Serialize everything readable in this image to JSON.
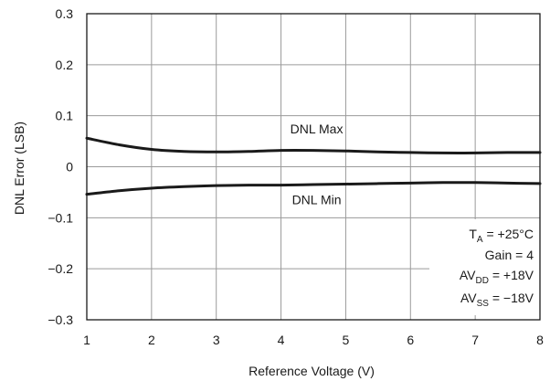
{
  "chart_data": {
    "type": "line",
    "title": "",
    "xlabel": "Reference Voltage (V)",
    "ylabel": "DNL Error (LSB)",
    "xlim": [
      1,
      8
    ],
    "ylim": [
      -0.3,
      0.3
    ],
    "x_ticks": [
      1,
      2,
      3,
      4,
      5,
      6,
      7,
      8
    ],
    "x_tick_labels": [
      "1",
      "2",
      "3",
      "4",
      "5",
      "6",
      "7",
      "8"
    ],
    "y_ticks": [
      0.3,
      0.2,
      0.1,
      0,
      -0.1,
      -0.2,
      -0.3
    ],
    "y_tick_labels": [
      "0.3",
      "0.2",
      "0.1",
      "0",
      "−0.1",
      "−0.2",
      "−0.3"
    ],
    "grid": true,
    "series": [
      {
        "name": "DNL Max",
        "x": [
          1,
          1.5,
          2,
          2.5,
          3,
          3.5,
          4,
          4.5,
          5,
          5.5,
          6,
          6.5,
          7,
          7.5,
          8
        ],
        "y": [
          0.056,
          0.043,
          0.034,
          0.03,
          0.029,
          0.03,
          0.032,
          0.032,
          0.031,
          0.029,
          0.028,
          0.027,
          0.027,
          0.028,
          0.028
        ]
      },
      {
        "name": "DNL Min",
        "x": [
          1,
          1.5,
          2,
          2.5,
          3,
          3.5,
          4,
          4.5,
          5,
          5.5,
          6,
          6.5,
          7,
          7.5,
          8
        ],
        "y": [
          -0.054,
          -0.047,
          -0.042,
          -0.039,
          -0.037,
          -0.036,
          -0.036,
          -0.035,
          -0.034,
          -0.033,
          -0.032,
          -0.031,
          -0.031,
          -0.032,
          -0.033
        ]
      }
    ],
    "series_labels": [
      {
        "text": "DNL Max",
        "at": [
          4.55,
          0.065
        ]
      },
      {
        "text": "DNL Min",
        "at": [
          4.55,
          -0.073
        ]
      }
    ],
    "conditions": {
      "ta": {
        "main": "T",
        "sub": "A",
        "rest": " = +25°C"
      },
      "gain": "Gain = 4",
      "avdd": {
        "main": "AV",
        "sub": "DD",
        "rest": " = +18V"
      },
      "avss": {
        "main": "AV",
        "sub": "SS",
        "rest": " = −18V"
      }
    },
    "legend_placement": "bottom-right"
  }
}
